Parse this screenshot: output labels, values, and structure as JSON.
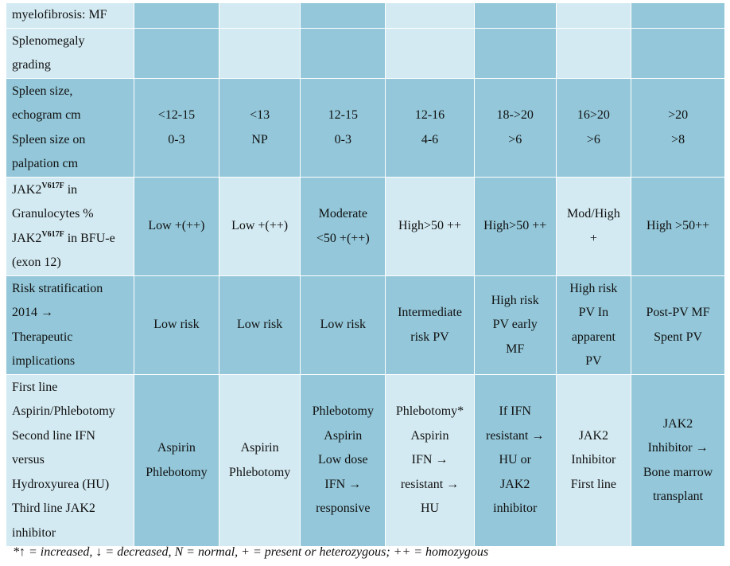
{
  "rows": [
    {
      "header": [
        [
          "myelofibrosis: MF"
        ]
      ],
      "cells": [
        "",
        "",
        "",
        "",
        "",
        "",
        ""
      ]
    },
    {
      "header": [
        [
          "Splenomegaly"
        ],
        [
          "grading"
        ]
      ],
      "cells": [
        "",
        "",
        "",
        "",
        "",
        "",
        ""
      ]
    },
    {
      "header": [
        [
          "Spleen size,"
        ],
        [
          "echogram cm"
        ],
        [
          "Spleen size on"
        ],
        [
          "palpation cm"
        ]
      ],
      "cells": [
        [
          "<12-15",
          "0-3"
        ],
        [
          "<13",
          "NP"
        ],
        [
          "12-15",
          "0-3"
        ],
        [
          "12-16",
          "4-6"
        ],
        [
          "18->20",
          ">6"
        ],
        [
          "16>20",
          ">6"
        ],
        [
          ">20",
          ">8"
        ]
      ]
    },
    {
      "header_label": {
        "jak2": "JAK2",
        "variant": "V617F",
        "in": " in",
        "granulocytes": "Granulocytes %",
        "in_bfu": " in BFU-e",
        "exon": "(exon 12)"
      },
      "cells": [
        [
          "Low +(++)"
        ],
        [
          "Low +(++)"
        ],
        [
          "Moderate",
          "<50 +(++)"
        ],
        [
          "High>50 ++"
        ],
        [
          "High>50 ++"
        ],
        [
          "Mod/High",
          "+"
        ],
        [
          "High >50++"
        ]
      ]
    },
    {
      "header": [
        [
          "Risk stratification"
        ],
        [
          "2014 →"
        ],
        [
          "Therapeutic"
        ],
        [
          "implications"
        ]
      ],
      "cells": [
        [
          "Low risk"
        ],
        [
          "Low risk"
        ],
        [
          "Low risk"
        ],
        [
          "Intermediate",
          "risk PV"
        ],
        [
          "High risk",
          "PV early",
          "MF"
        ],
        [
          "High risk",
          "PV In",
          "apparent",
          "PV"
        ],
        [
          "Post-PV MF",
          "Spent PV"
        ]
      ]
    },
    {
      "header": [
        [
          "First line"
        ],
        [
          "Aspirin/Phlebotomy"
        ],
        [
          "Second line IFN"
        ],
        [
          "versus"
        ],
        [
          "Hydroxyurea (HU)"
        ],
        [
          "Third line JAK2"
        ],
        [
          "inhibitor"
        ]
      ],
      "cells": [
        [
          "Aspirin",
          "Phlebotomy"
        ],
        [
          "Aspirin",
          "Phlebotomy"
        ],
        [
          "Phlebotomy",
          "Aspirin",
          "Low dose",
          "IFN →",
          "responsive"
        ],
        [
          "Phlebotomy*",
          "Aspirin",
          "IFN →",
          "resistant →",
          "HU"
        ],
        [
          "If IFN",
          "resistant →",
          "HU or",
          "JAK2",
          "inhibitor"
        ],
        [
          "JAK2",
          "Inhibitor",
          "First line"
        ],
        [
          "JAK2",
          "Inhibitor →",
          "Bone marrow",
          "transplant"
        ]
      ]
    }
  ],
  "footnote": "*↑ = increased, ↓ = decreased, N = normal, + = present or heterozygous; ++ = homozygous",
  "colors": {
    "dark": "#93c7d9",
    "light": "#d3eaf2"
  }
}
